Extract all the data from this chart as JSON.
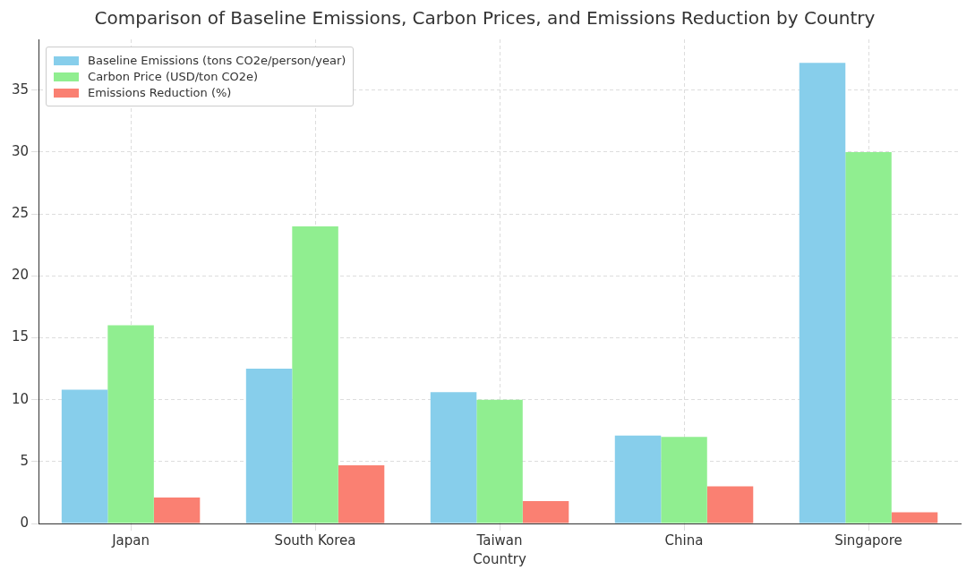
{
  "chart_data": {
    "type": "bar",
    "title": "Comparison of Baseline Emissions, Carbon Prices, and Emissions Reduction by Country",
    "xlabel": "Country",
    "categories": [
      "Japan",
      "South Korea",
      "Taiwan",
      "China",
      "Singapore"
    ],
    "series": [
      {
        "name": "Baseline Emissions (tons CO2e/person/year)",
        "color": "#87ceeb",
        "values": [
          10.8,
          12.5,
          10.6,
          7.1,
          37.2
        ]
      },
      {
        "name": "Carbon Price (USD/ton CO2e)",
        "color": "#90ee90",
        "values": [
          16,
          24,
          10,
          7,
          30
        ]
      },
      {
        "name": "Emissions Reduction (%)",
        "color": "#fa8072",
        "values": [
          2.1,
          4.7,
          1.8,
          3,
          0.9
        ]
      }
    ],
    "ylim": [
      0,
      39.1
    ],
    "yticks": [
      0,
      5,
      10,
      15,
      20,
      25,
      30,
      35
    ],
    "grid": true,
    "legend": "top left"
  }
}
